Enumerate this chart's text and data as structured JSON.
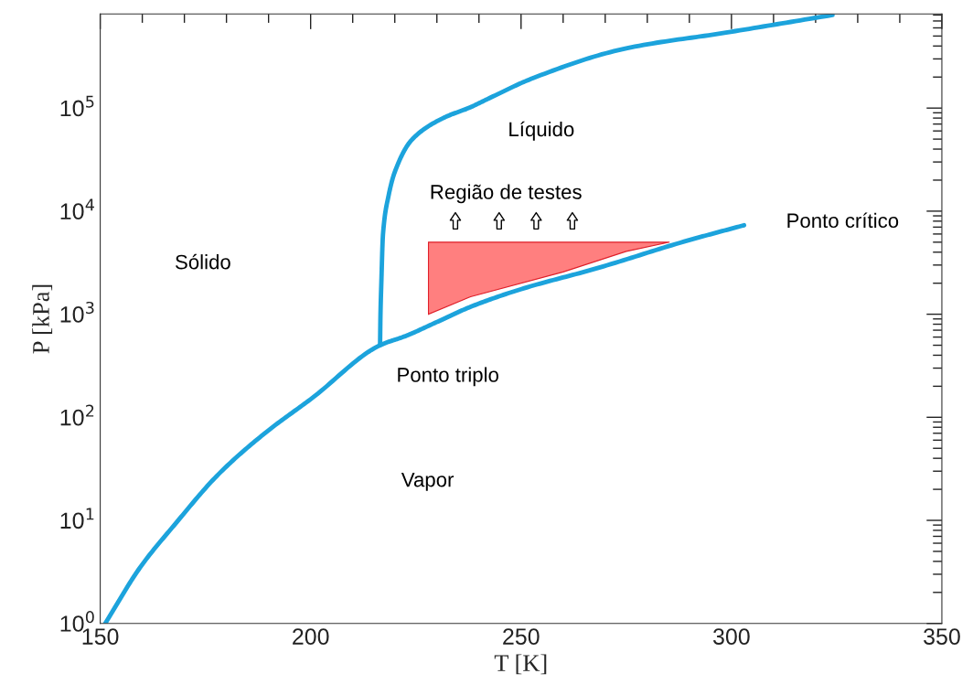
{
  "chart_data": {
    "type": "line",
    "xlabel": "T [K]",
    "ylabel": "P [kPa]",
    "log": "y",
    "grid": false,
    "legend": false,
    "marker": "none",
    "line_style": "solid",
    "xlim": [
      150,
      350
    ],
    "xticks": [
      150,
      200,
      250,
      300,
      350
    ],
    "ylim": [
      1,
      820000
    ],
    "yticks": [
      {
        "value": 1,
        "label": "10$^{0}$"
      },
      {
        "value": 10,
        "label": "10$^{1}$"
      },
      {
        "value": 100,
        "label": "10$^{2}$"
      },
      {
        "value": 1000,
        "label": "10$^{3}$"
      },
      {
        "value": 10000,
        "label": "10$^{4}$"
      },
      {
        "value": 100000,
        "label": "10$^{5}$"
      }
    ],
    "series": [
      {
        "color": "#1ca3dc",
        "x": [
          151.2,
          159.5,
          167.8,
          178.1,
          189.3,
          200.4,
          216.5,
          222.6,
          230,
          238,
          250,
          267.6,
          289.7,
          303
        ],
        "values": [
          1,
          3.5,
          9.2,
          28,
          71,
          154,
          500,
          615,
          840,
          1180,
          1750,
          2760,
          5200,
          7300
        ]
      },
      {
        "color": "#1ca3dc",
        "x": [
          216.5,
          216.6,
          216.8,
          217.2,
          218.5,
          220,
          224,
          231.5,
          238,
          242.5,
          252.8,
          275,
          298.7,
          324
        ],
        "values": [
          500,
          1000,
          2000,
          6000,
          14000,
          24000,
          49000,
          80000,
          102000,
          125000,
          195000,
          380000,
          540000,
          800000
        ]
      },
      {
        "type": "area",
        "color": "#ff7f7f",
        "x": [
          228,
          228,
          285.3,
          275,
          260,
          238,
          228
        ],
        "values": [
          1000,
          5000,
          5000,
          4070,
          2570,
          1480,
          1000
        ]
      }
    ],
    "annotations": [
      "Sólido",
      "Líquido",
      "Região de testes",
      "Ponto crítico",
      "Ponto triplo",
      "Vapor"
    ]
  }
}
